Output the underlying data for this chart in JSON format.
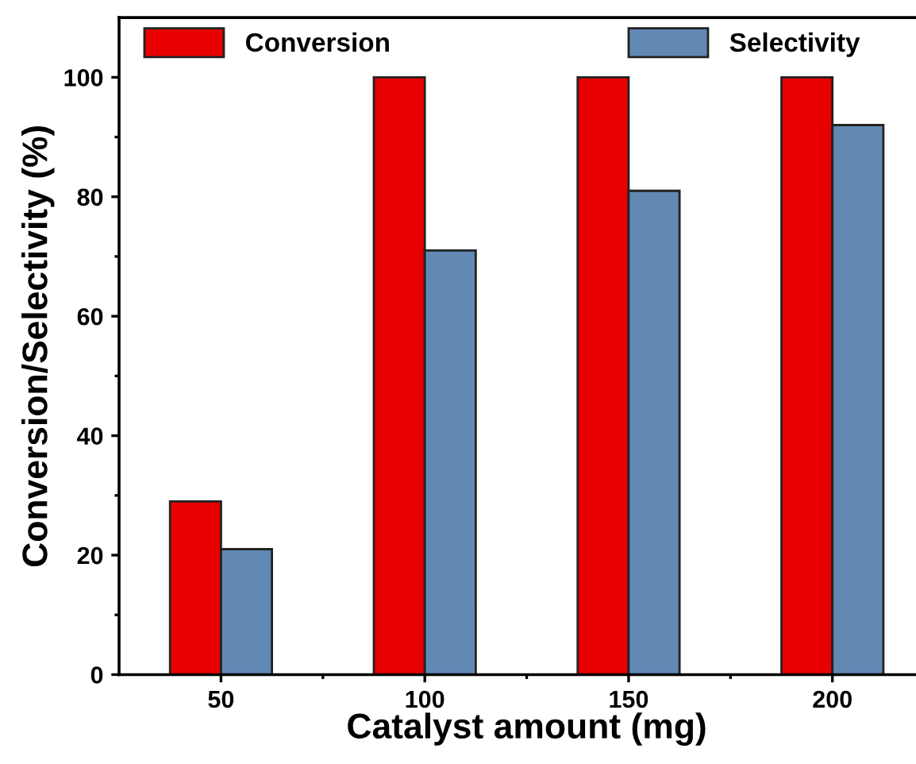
{
  "chart_data": {
    "type": "bar",
    "xlabel": "Catalyst amount (mg)",
    "ylabel": "Conversion/Selectivity (%)",
    "categories": [
      "50",
      "100",
      "150",
      "200"
    ],
    "series": [
      {
        "name": "Conversion",
        "color": "#e80000",
        "values": [
          29,
          100,
          100,
          100
        ]
      },
      {
        "name": "Selectivity",
        "color": "#6189b4",
        "values": [
          21,
          71,
          81,
          92
        ]
      }
    ],
    "ylim": [
      0,
      110
    ],
    "yticks": [
      0,
      20,
      40,
      60,
      80,
      100
    ],
    "grid": false,
    "legend": "top"
  }
}
